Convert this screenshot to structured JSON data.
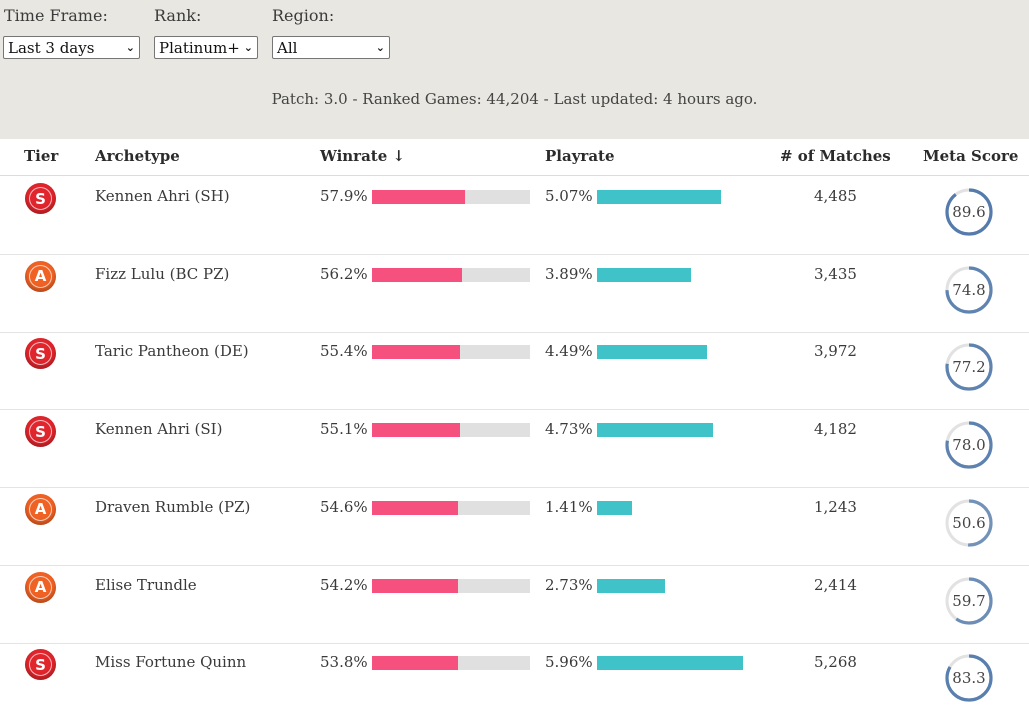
{
  "filters": {
    "time_frame": {
      "label": "Time Frame:",
      "value": "Last 3 days"
    },
    "rank": {
      "label": "Rank:",
      "value": "Platinum+"
    },
    "region": {
      "label": "Region:",
      "value": "All"
    }
  },
  "info": "Patch: 3.0 - Ranked Games: 44,204 - Last updated: 4 hours ago.",
  "columns": {
    "tier": "Tier",
    "archetype": "Archetype",
    "winrate": "Winrate ↓",
    "playrate": "Playrate",
    "matches": "# of Matches",
    "meta_score": "Meta Score"
  },
  "colors": {
    "winrate_bar": "#f5507e",
    "playrate_bar": "#3fc3c8",
    "tier_s": "#e0252c",
    "tier_a": "#f06224",
    "meta_ring": "#4a74a8"
  },
  "rows": [
    {
      "tier": "S",
      "archetype": "Kennen Ahri (SH)",
      "winrate": "57.9%",
      "winrate_fill": 0.58,
      "playrate": "5.07%",
      "playrate_fill": 0.79,
      "matches": "4,485",
      "meta_score": "89.6",
      "meta_value": 89.6
    },
    {
      "tier": "A",
      "archetype": "Fizz Lulu (BC PZ)",
      "winrate": "56.2%",
      "winrate_fill": 0.56,
      "playrate": "3.89%",
      "playrate_fill": 0.6,
      "matches": "3,435",
      "meta_score": "74.8",
      "meta_value": 74.8
    },
    {
      "tier": "S",
      "archetype": "Taric Pantheon (DE)",
      "winrate": "55.4%",
      "winrate_fill": 0.55,
      "playrate": "4.49%",
      "playrate_fill": 0.7,
      "matches": "3,972",
      "meta_score": "77.2",
      "meta_value": 77.2
    },
    {
      "tier": "S",
      "archetype": "Kennen Ahri (SI)",
      "winrate": "55.1%",
      "winrate_fill": 0.55,
      "playrate": "4.73%",
      "playrate_fill": 0.74,
      "matches": "4,182",
      "meta_score": "78.0",
      "meta_value": 78.0
    },
    {
      "tier": "A",
      "archetype": "Draven Rumble (PZ)",
      "winrate": "54.6%",
      "winrate_fill": 0.54,
      "playrate": "1.41%",
      "playrate_fill": 0.22,
      "matches": "1,243",
      "meta_score": "50.6",
      "meta_value": 50.6
    },
    {
      "tier": "A",
      "archetype": "Elise Trundle",
      "winrate": "54.2%",
      "winrate_fill": 0.54,
      "playrate": "2.73%",
      "playrate_fill": 0.43,
      "matches": "2,414",
      "meta_score": "59.7",
      "meta_value": 59.7
    },
    {
      "tier": "S",
      "archetype": "Miss Fortune Quinn",
      "winrate": "53.8%",
      "winrate_fill": 0.54,
      "playrate": "5.96%",
      "playrate_fill": 0.93,
      "matches": "5,268",
      "meta_score": "83.3",
      "meta_value": 83.3
    }
  ]
}
